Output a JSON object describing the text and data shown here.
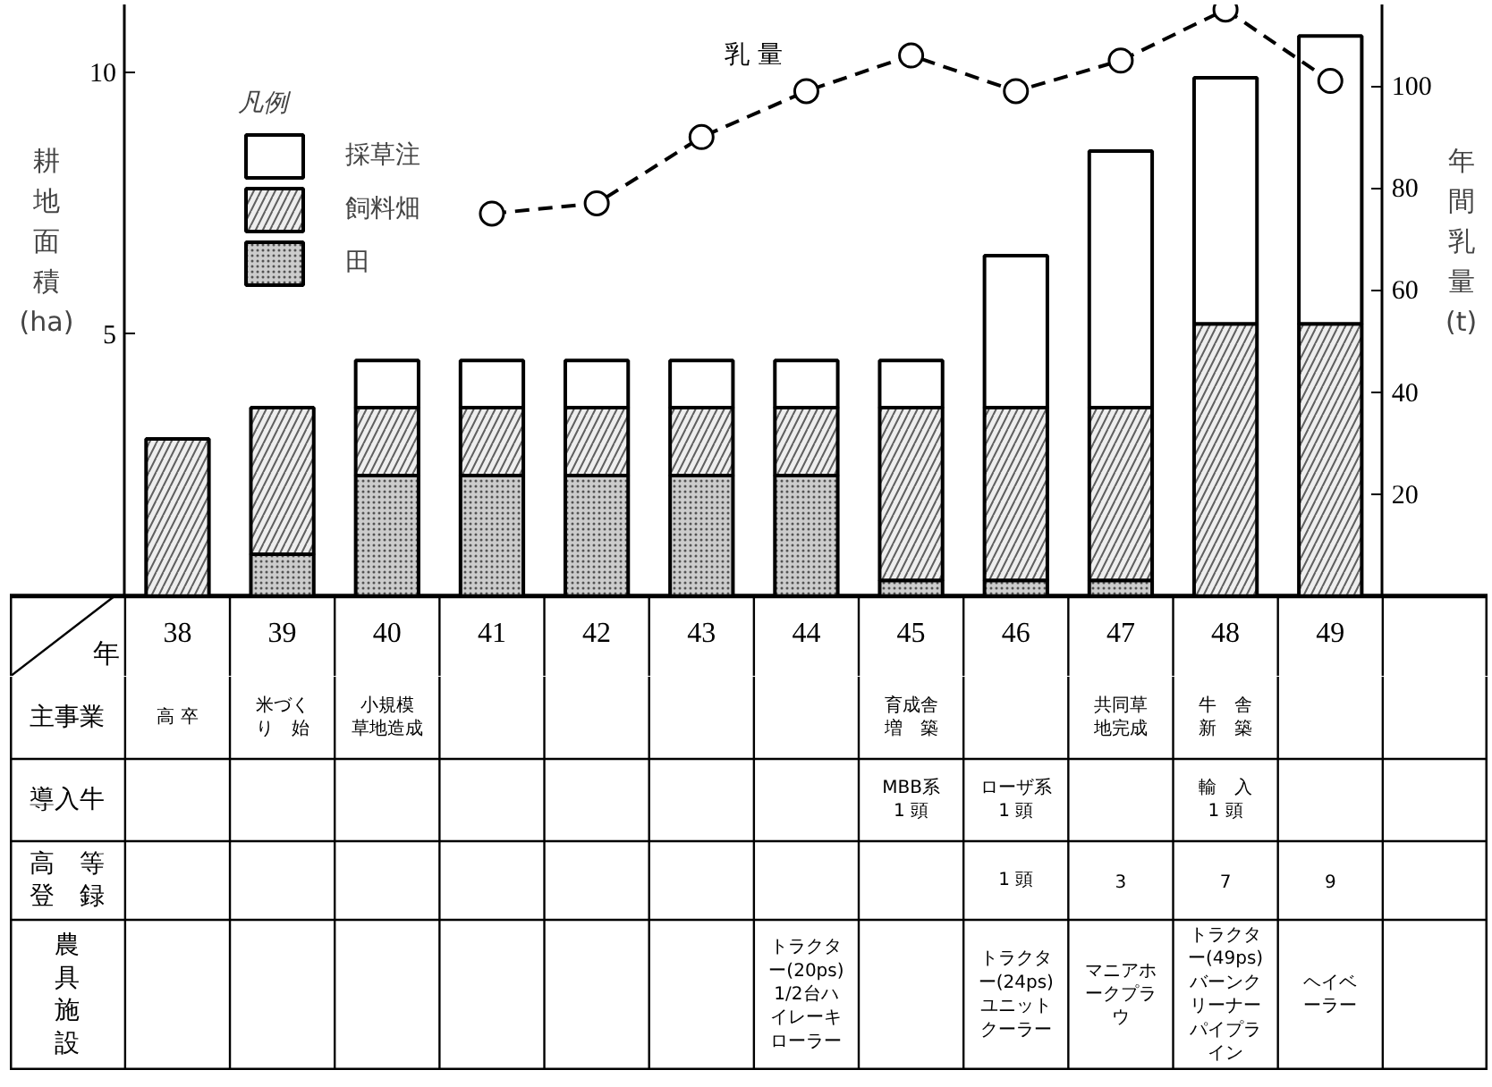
{
  "chart_data": [
    {
      "type": "bar",
      "stacked": true,
      "xlabel": "年",
      "ylabel": "耕地面積(ha)",
      "y2label": "年間乳量(t)",
      "legend_title": "凡例",
      "legend": "top left",
      "grid": false,
      "categories": [
        "38",
        "39",
        "40",
        "41",
        "42",
        "43",
        "44",
        "45",
        "46",
        "47",
        "48",
        "49"
      ],
      "ylim": [
        0,
        11.3
      ],
      "yticks": [
        5,
        10
      ],
      "y2lim": [
        0,
        116
      ],
      "y2ticks": [
        20,
        40,
        60,
        80,
        100
      ],
      "series": [
        {
          "name": "田",
          "color": "#cccccc",
          "values": [
            null,
            0.8,
            2.3,
            2.3,
            2.3,
            2.3,
            2.3,
            0.3,
            0.3,
            0.3,
            null,
            null
          ]
        },
        {
          "name": "飼料畑",
          "color": "#eeeeee",
          "values": [
            3.0,
            2.8,
            1.3,
            1.3,
            1.3,
            1.3,
            1.3,
            3.3,
            3.3,
            3.3,
            5.2,
            5.2
          ]
        },
        {
          "name": "採草注",
          "color": "#ffffff",
          "values": [
            null,
            null,
            0.9,
            0.9,
            0.9,
            0.9,
            0.9,
            0.9,
            2.9,
            4.9,
            4.7,
            5.5
          ]
        },
        {
          "name": "乳 量",
          "type": "line",
          "axis": "y2",
          "color": "#000000",
          "marker": "circle",
          "line_style": "dashed",
          "values": [
            null,
            null,
            null,
            75,
            77,
            90,
            99,
            106,
            99,
            105,
            115,
            101
          ]
        }
      ]
    },
    {
      "type": "other",
      "y_categories": [
        "主事業",
        "導入牛",
        "高　等登　録",
        "農具施設"
      ],
      "cell_labels": [
        [
          "高 卒",
          "米づくり　始",
          "小規模草地造成",
          null,
          null,
          null,
          null,
          "育成舎増　築",
          null,
          "共同草地完成",
          "牛　舎新　築",
          null,
          null
        ],
        [
          null,
          null,
          null,
          null,
          null,
          null,
          null,
          "MBB系 1 頭",
          "ローザ系 1 頭",
          null,
          "輸　入 1 頭",
          null,
          null
        ],
        [
          null,
          null,
          null,
          null,
          null,
          null,
          null,
          null,
          "1 頭",
          "3",
          "7",
          "9",
          null
        ],
        [
          null,
          null,
          null,
          null,
          null,
          null,
          "トラクター(20ps)1/2台ハイレーキローラー",
          null,
          "トラクター(24ps)ユニットクーラー",
          "マニアホークプラウ",
          "トラクター(49ps)バーンクリーナーパイプライン",
          "ヘイベーラー",
          null
        ]
      ]
    }
  ]
}
